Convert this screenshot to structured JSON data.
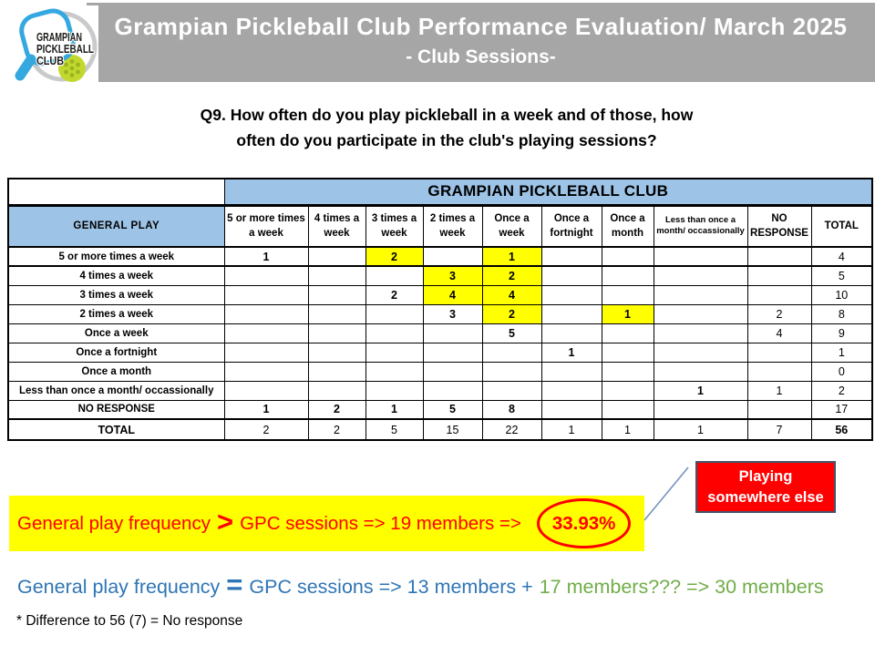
{
  "colors": {
    "header_gray": "#A6A6A6",
    "table_fill_blue": "#9DC3E6",
    "table_text_blue": "#1F7EC8",
    "value_blue": "#2E75B6",
    "value_red": "#FF0000",
    "value_green": "#70AD47",
    "highlight_yellow": "#FFFF00",
    "callout_red": "#FF0000",
    "callout_border": "#44546A"
  },
  "logo": {
    "line1": "GRAMPIAN",
    "line2": "PICKLEBALL",
    "line3": "CLUB"
  },
  "header": {
    "title_line1": "Grampian Pickleball Club Performance Evaluation/ March 2025",
    "title_line2": "- Club Sessions-"
  },
  "question": {
    "line1": "Q9. How often do you play pickleball in a week and of those, how",
    "line2": "often do you participate in the club's playing sessions?"
  },
  "table": {
    "club_header": "GRAMPIAN PICKLEBALL CLUB",
    "row_header_label": "GENERAL PLAY",
    "columns": [
      "5 or more times a week",
      "4 times a week",
      "3 times a week",
      "2 times a week",
      "Once a week",
      "Once a fortnight",
      "Once a month",
      "Less than once a month/ occassionally",
      "NO RESPONSE",
      "TOTAL"
    ],
    "rows": [
      {
        "label": "5 or more times a week",
        "cells": [
          {
            "v": "1",
            "s": "blue"
          },
          {},
          {
            "v": "2",
            "s": "ry"
          },
          {},
          {
            "v": "1",
            "s": "ry"
          },
          {},
          {},
          {},
          {},
          {
            "v": "4"
          }
        ]
      },
      {
        "label": "4 times a week",
        "cells": [
          {},
          {},
          {},
          {
            "v": "3",
            "s": "ry"
          },
          {
            "v": "2",
            "s": "ry"
          },
          {},
          {},
          {},
          {},
          {
            "v": "5"
          }
        ]
      },
      {
        "label": "3 times a week",
        "cells": [
          {},
          {},
          {
            "v": "2",
            "s": "blue"
          },
          {
            "v": "4",
            "s": "ry"
          },
          {
            "v": "4",
            "s": "ry"
          },
          {},
          {},
          {},
          {},
          {
            "v": "10"
          }
        ]
      },
      {
        "label": "2 times a week",
        "cells": [
          {},
          {},
          {},
          {
            "v": "3",
            "s": "blue"
          },
          {
            "v": "2",
            "s": "ry"
          },
          {},
          {
            "v": "1",
            "s": "ry"
          },
          {},
          {
            "v": "2"
          },
          {
            "v": "8"
          }
        ]
      },
      {
        "label": "Once a week",
        "cells": [
          {},
          {},
          {},
          {},
          {
            "v": "5",
            "s": "blue"
          },
          {},
          {},
          {},
          {
            "v": "4"
          },
          {
            "v": "9"
          }
        ]
      },
      {
        "label": "Once a fortnight",
        "cells": [
          {},
          {},
          {},
          {},
          {},
          {
            "v": "1",
            "s": "blue"
          },
          {},
          {},
          {},
          {
            "v": "1"
          }
        ]
      },
      {
        "label": "Once a month",
        "cells": [
          {},
          {},
          {},
          {},
          {},
          {},
          {},
          {},
          {},
          {
            "v": "0"
          }
        ]
      },
      {
        "label": "Less than once a month/ occassionally",
        "cells": [
          {},
          {},
          {},
          {},
          {},
          {},
          {},
          {
            "v": "1",
            "s": "blue"
          },
          {
            "v": "1"
          },
          {
            "v": "2"
          }
        ]
      },
      {
        "label": "NO RESPONSE",
        "cells": [
          {
            "v": "1",
            "s": "green"
          },
          {
            "v": "2",
            "s": "green"
          },
          {
            "v": "1",
            "s": "green"
          },
          {
            "v": "5",
            "s": "green"
          },
          {
            "v": "8",
            "s": "green"
          },
          {},
          {},
          {},
          {},
          {
            "v": "17"
          }
        ]
      }
    ],
    "total_row": {
      "label": "TOTAL",
      "values": [
        "2",
        "2",
        "5",
        "15",
        "22",
        "1",
        "1",
        "1",
        "7",
        "56"
      ]
    }
  },
  "banner": {
    "prefix": "General play frequency",
    "operator": ">",
    "middle": "GPC sessions => 19 members =>",
    "value": "33.93%"
  },
  "callout": {
    "line1": "Playing",
    "line2": "somewhere else"
  },
  "equal_line": {
    "prefix": "General play frequency",
    "operator": "=",
    "middle": "GPC sessions => 13 members +",
    "green_part": "17 members??? => 30 members"
  },
  "footnote": "* Difference to 56 (7) = No response"
}
